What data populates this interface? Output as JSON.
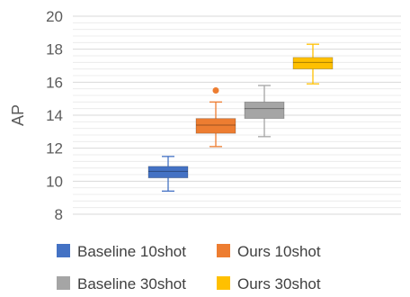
{
  "chart_data": {
    "type": "box",
    "title": "",
    "xlabel": "",
    "ylabel": "AP",
    "ylim": [
      8,
      20
    ],
    "y_ticks": [
      "8",
      "10",
      "12",
      "14",
      "16",
      "18",
      "20"
    ],
    "grid": true,
    "legend_position": "bottom",
    "series": [
      {
        "name": "Baseline 10shot",
        "color": "#4472c4",
        "min": 9.4,
        "q1": 10.2,
        "median": 10.6,
        "q3": 10.9,
        "max": 11.5,
        "outliers": []
      },
      {
        "name": "Ours 10shot",
        "color": "#ed7d31",
        "min": 12.1,
        "q1": 12.9,
        "median": 13.4,
        "q3": 13.8,
        "max": 14.8,
        "outliers": [
          15.5
        ]
      },
      {
        "name": "Baseline 30shot",
        "color": "#a5a5a5",
        "min": 12.7,
        "q1": 13.8,
        "median": 14.4,
        "q3": 14.8,
        "max": 15.8,
        "outliers": []
      },
      {
        "name": "Ours 30shot",
        "color": "#ffc000",
        "min": 15.9,
        "q1": 16.8,
        "median": 17.2,
        "q3": 17.5,
        "max": 18.3,
        "outliers": []
      }
    ]
  }
}
